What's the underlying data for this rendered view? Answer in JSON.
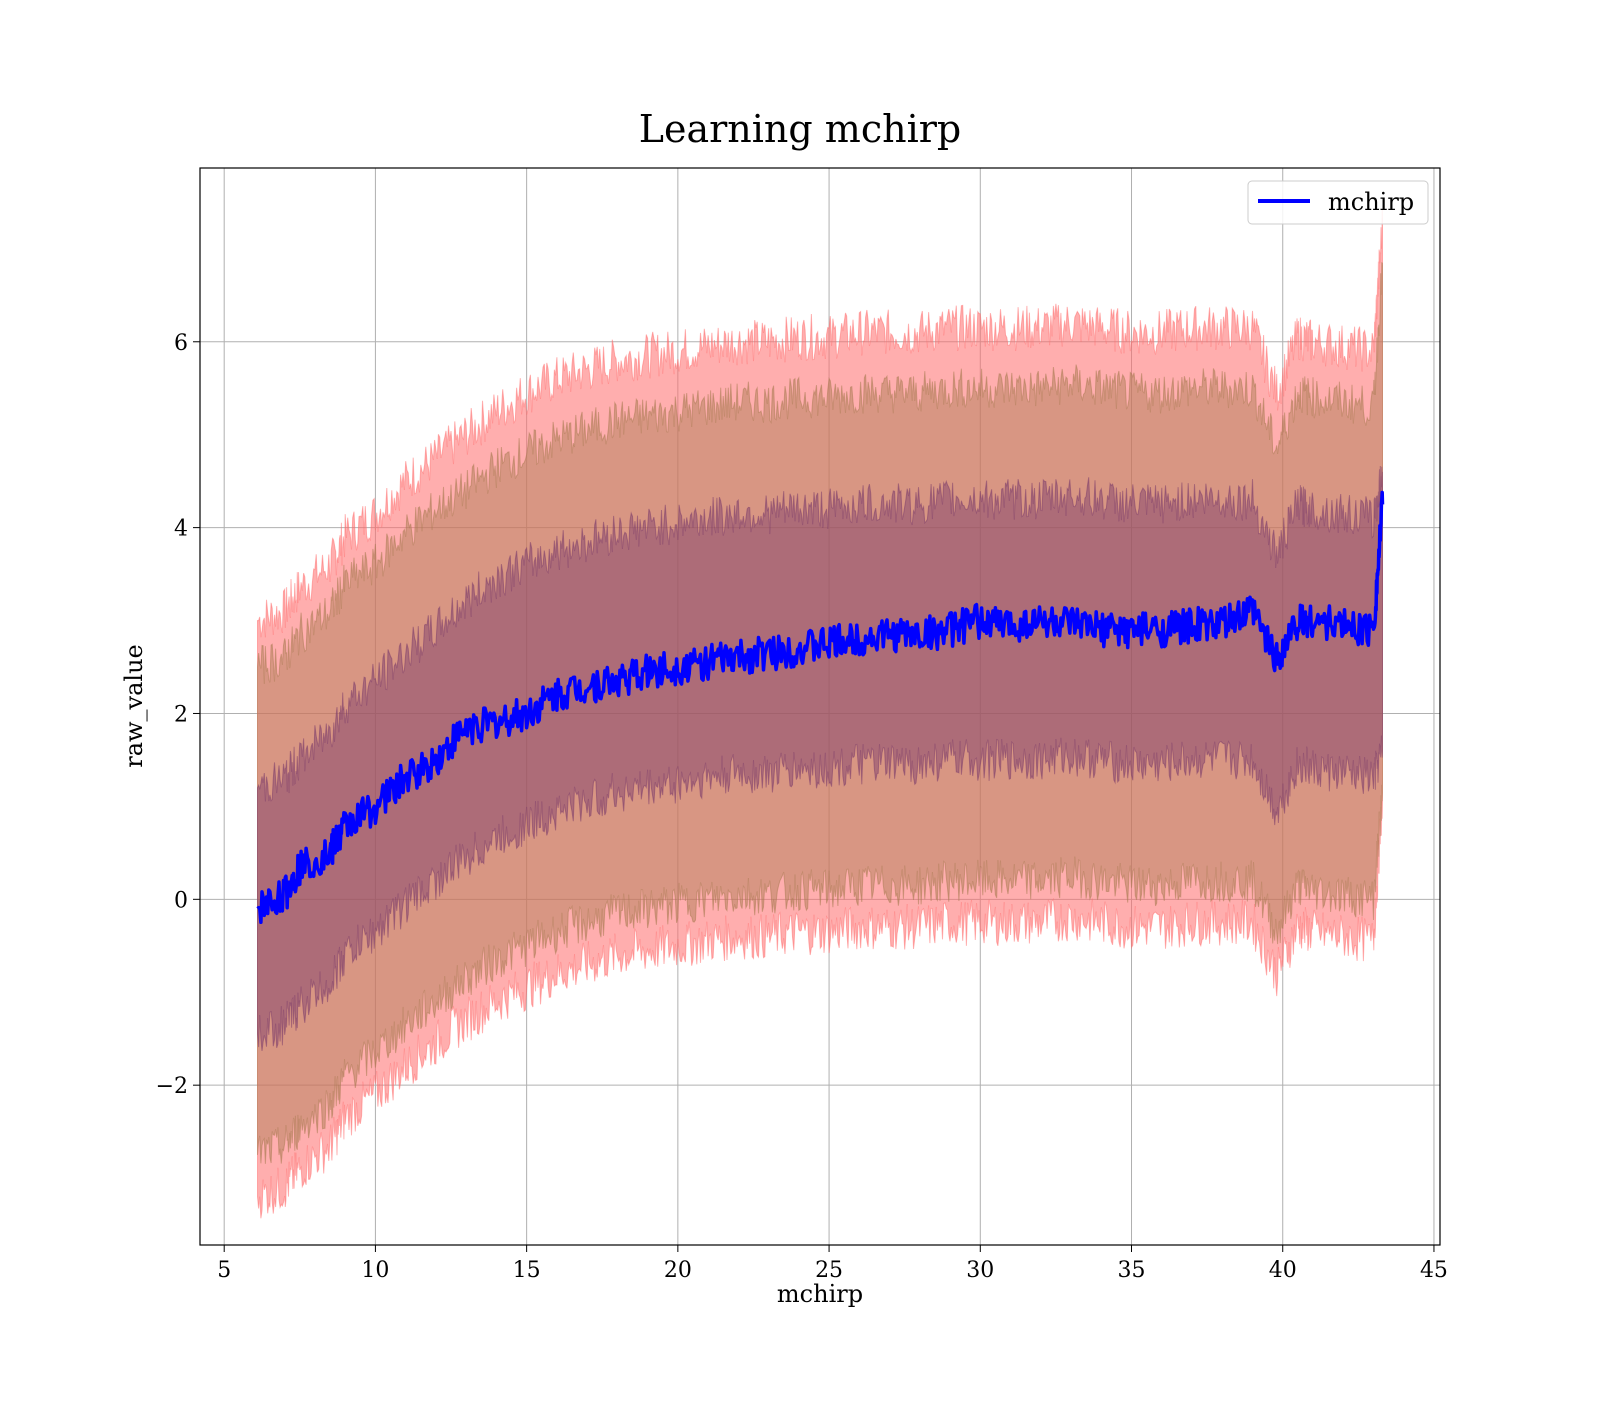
{
  "chart_data": {
    "type": "line",
    "title": "Learning mchirp",
    "xlabel": "mchirp",
    "ylabel": "raw_value",
    "xlim": [
      4.2,
      45.2
    ],
    "ylim": [
      -3.72,
      7.87
    ],
    "xticks": [
      5,
      10,
      15,
      20,
      25,
      30,
      35,
      40,
      45
    ],
    "yticks": [
      -2,
      0,
      2,
      4,
      6
    ],
    "ytick_labels": [
      "−2",
      "0",
      "2",
      "4",
      "6"
    ],
    "grid": true,
    "legend": {
      "placement": "top-right",
      "entries": [
        "mchirp"
      ]
    },
    "colors": {
      "line": "#0000ff",
      "band": "#ff0000",
      "band_overlap": "#8a5a7a",
      "grid": "#b0b0b0"
    },
    "series": [
      {
        "name": "mchirp",
        "x": [
          6.1,
          7.0,
          7.5,
          8.5,
          9.0,
          10.0,
          11.0,
          12.0,
          13.0,
          14.0,
          15.0,
          16.0,
          17.0,
          18.0,
          19.0,
          20.0,
          21.0,
          22.0,
          23.0,
          24.0,
          25.0,
          26.0,
          27.0,
          28.0,
          29.0,
          30.0,
          31.0,
          32.0,
          33.0,
          34.0,
          35.0,
          36.0,
          37.0,
          38.0,
          39.0,
          39.8,
          40.5,
          41.0,
          42.0,
          43.0,
          43.3
        ],
        "y": [
          -0.1,
          0.05,
          0.35,
          0.5,
          0.8,
          1.0,
          1.3,
          1.5,
          1.85,
          1.9,
          2.0,
          2.2,
          2.3,
          2.35,
          2.45,
          2.5,
          2.55,
          2.6,
          2.65,
          2.7,
          2.75,
          2.8,
          2.85,
          2.85,
          2.9,
          3.0,
          2.95,
          3.0,
          2.95,
          2.9,
          2.9,
          2.9,
          2.95,
          2.95,
          3.1,
          2.6,
          3.0,
          3.0,
          2.95,
          2.9,
          4.25
        ],
        "upper_band_outer": [
          3.0,
          3.1,
          3.35,
          3.6,
          3.9,
          4.15,
          4.5,
          4.75,
          5.0,
          5.25,
          5.45,
          5.6,
          5.7,
          5.8,
          5.85,
          5.9,
          5.95,
          6.0,
          6.0,
          6.05,
          6.05,
          6.1,
          6.1,
          6.1,
          6.15,
          6.15,
          6.15,
          6.15,
          6.2,
          6.15,
          6.1,
          6.1,
          6.15,
          6.15,
          6.15,
          5.45,
          6.05,
          6.0,
          5.95,
          5.9,
          7.3
        ],
        "upper_band_inner": [
          2.5,
          2.6,
          2.85,
          3.1,
          3.4,
          3.6,
          3.95,
          4.2,
          4.4,
          4.65,
          4.8,
          4.95,
          5.05,
          5.15,
          5.2,
          5.25,
          5.3,
          5.35,
          5.35,
          5.4,
          5.4,
          5.45,
          5.45,
          5.45,
          5.5,
          5.5,
          5.5,
          5.5,
          5.55,
          5.5,
          5.45,
          5.45,
          5.5,
          5.5,
          5.5,
          4.85,
          5.45,
          5.4,
          5.35,
          5.3,
          6.85
        ],
        "upper_band_core": [
          1.2,
          1.3,
          1.5,
          1.8,
          2.1,
          2.35,
          2.65,
          2.9,
          3.2,
          3.45,
          3.6,
          3.75,
          3.85,
          3.95,
          4.0,
          4.05,
          4.1,
          4.15,
          4.15,
          4.2,
          4.2,
          4.25,
          4.25,
          4.25,
          4.3,
          4.3,
          4.3,
          4.3,
          4.35,
          4.3,
          4.25,
          4.25,
          4.3,
          4.3,
          4.3,
          3.7,
          4.25,
          4.2,
          4.15,
          4.1,
          4.6
        ],
        "lower_band_core": [
          -1.45,
          -1.35,
          -1.15,
          -0.9,
          -0.6,
          -0.35,
          -0.05,
          0.2,
          0.45,
          0.65,
          0.8,
          0.95,
          1.05,
          1.15,
          1.2,
          1.25,
          1.3,
          1.35,
          1.35,
          1.4,
          1.4,
          1.45,
          1.45,
          1.45,
          1.5,
          1.5,
          1.5,
          1.5,
          1.55,
          1.5,
          1.45,
          1.45,
          1.5,
          1.5,
          1.5,
          0.95,
          1.45,
          1.4,
          1.35,
          1.3,
          1.6
        ],
        "lower_band_inner": [
          -2.75,
          -2.65,
          -2.45,
          -2.2,
          -1.9,
          -1.65,
          -1.35,
          -1.1,
          -0.85,
          -0.65,
          -0.5,
          -0.35,
          -0.25,
          -0.15,
          -0.1,
          -0.05,
          0.0,
          0.05,
          0.05,
          0.1,
          0.1,
          0.15,
          0.15,
          0.15,
          0.2,
          0.2,
          0.2,
          0.2,
          0.25,
          0.2,
          0.15,
          0.15,
          0.2,
          0.2,
          0.2,
          -0.35,
          0.15,
          0.1,
          0.05,
          0.0,
          1.15
        ],
        "lower_band_outer": [
          -3.2,
          -3.1,
          -2.9,
          -2.65,
          -2.35,
          -2.1,
          -1.8,
          -1.55,
          -1.3,
          -1.1,
          -0.95,
          -0.8,
          -0.7,
          -0.6,
          -0.55,
          -0.5,
          -0.45,
          -0.4,
          -0.4,
          -0.35,
          -0.35,
          -0.3,
          -0.3,
          -0.3,
          -0.25,
          -0.25,
          -0.25,
          -0.25,
          -0.2,
          -0.25,
          -0.3,
          -0.3,
          -0.25,
          -0.25,
          -0.25,
          -0.8,
          -0.3,
          -0.35,
          -0.4,
          -0.45,
          1.1
        ]
      }
    ]
  }
}
